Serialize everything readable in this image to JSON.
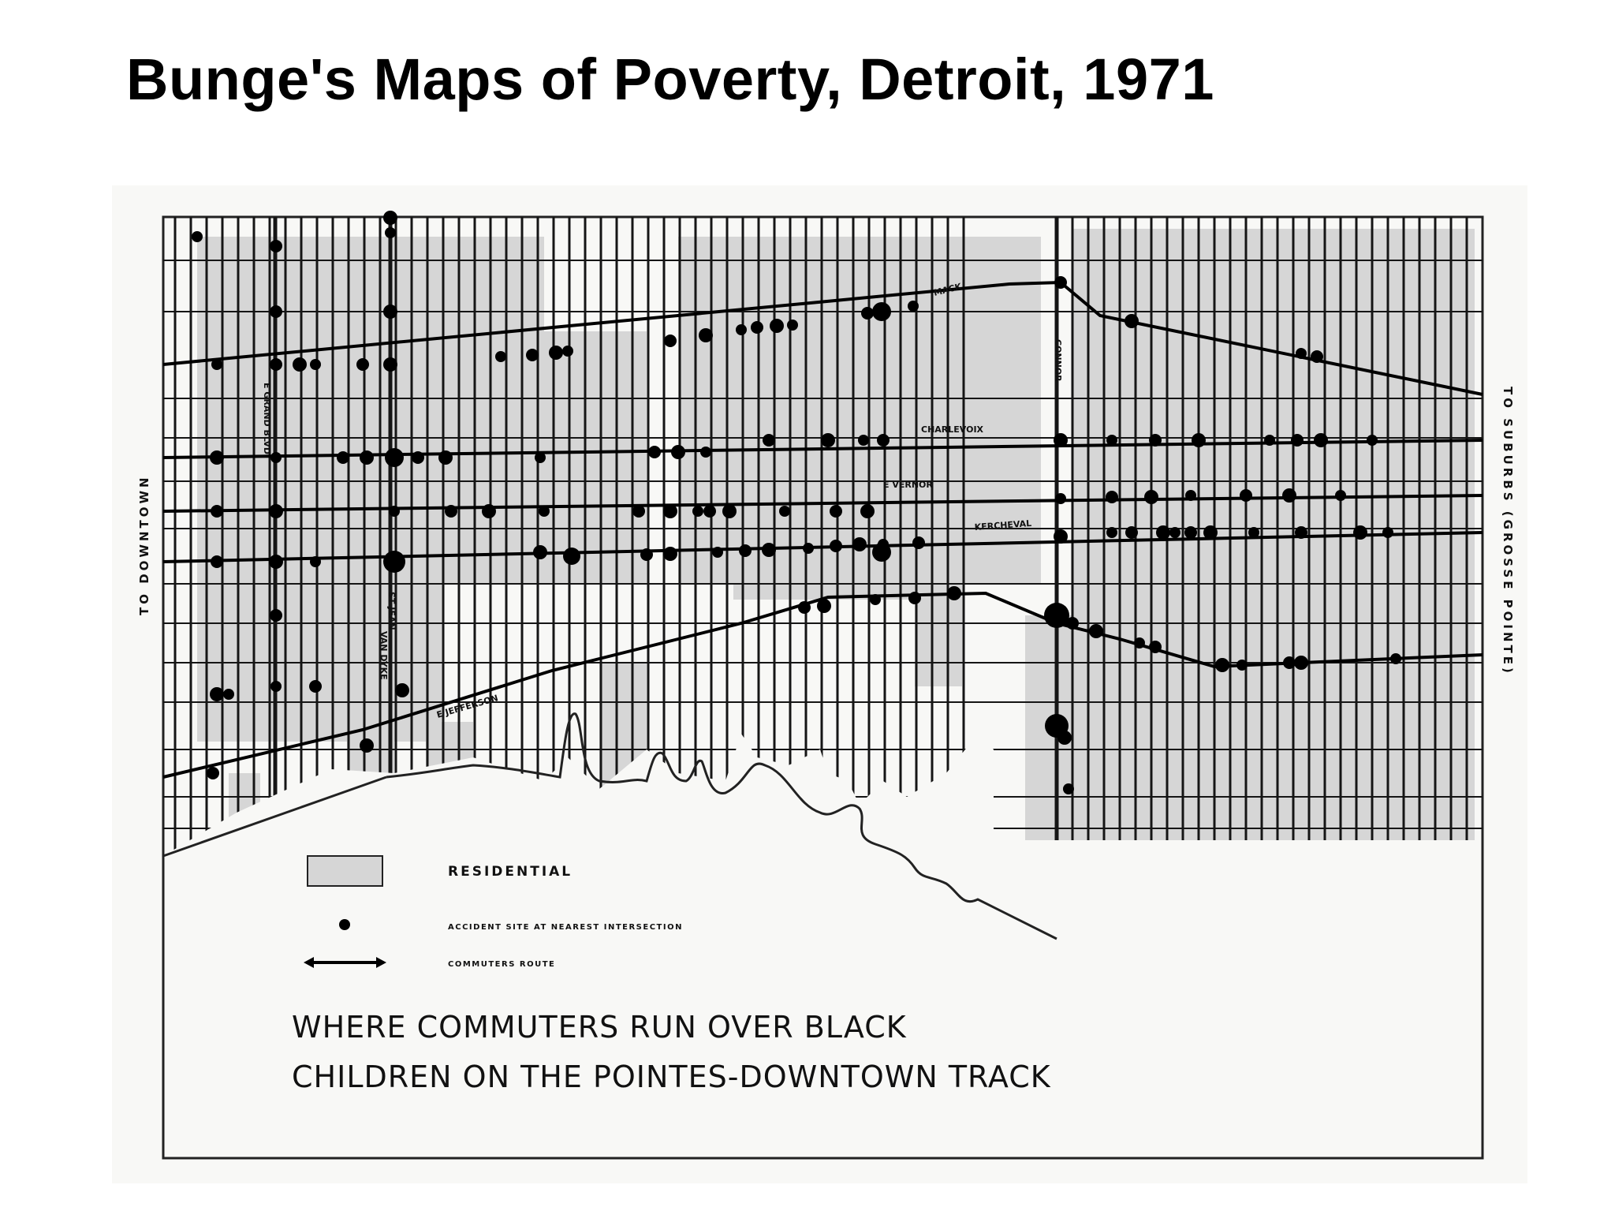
{
  "slide": {
    "title": "Bunge's Maps of Poverty, Detroit, 1971"
  },
  "map": {
    "street_labels": {
      "mack": "MACK",
      "connor": "CONNOR",
      "charlevoix": "CHARLEVOIX",
      "vernor": "E VERNOR",
      "kercheval": "KERCHEVAL",
      "jefferson": "E JEFFERSON",
      "grand_blvd": "E GRAND BLVD",
      "van_dyke": "VAN DYKE",
      "st_jean": "ST JEAN"
    },
    "side_labels": {
      "left": "TO DOWNTOWN",
      "right": "TO SUBURBS (GROSSE POINTE)"
    },
    "legend": {
      "residential": "RESIDENTIAL",
      "accident": "ACCIDENT SITE AT NEAREST INTERSECTION",
      "route": "COMMUTERS ROUTE"
    },
    "caption": {
      "line1": "WHERE COMMUTERS RUN OVER BLACK",
      "line2": "CHILDREN ON THE POINTES-DOWNTOWN TRACK"
    },
    "colors": {
      "residential": "#d6d6d6",
      "ink": "#111111",
      "paper": "#f7f7f5"
    }
  }
}
